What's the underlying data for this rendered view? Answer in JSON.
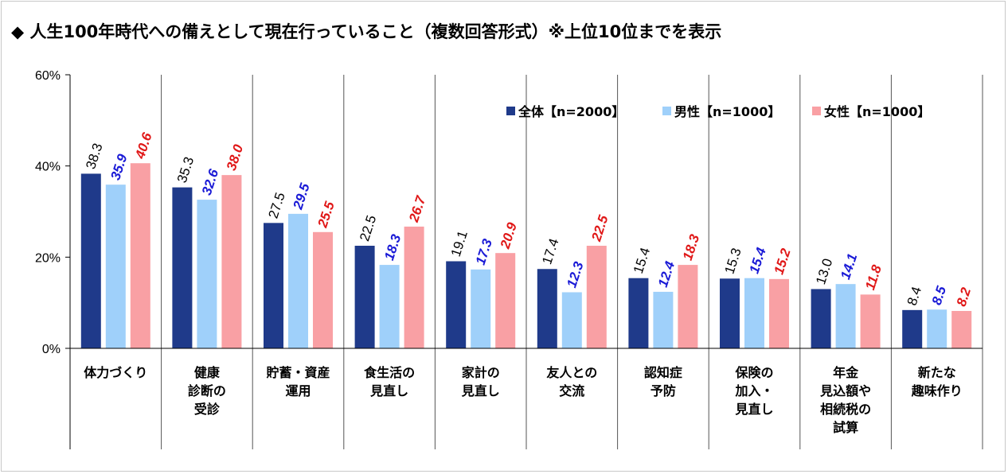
{
  "title": "◆ 人生100年時代への備えとして現在行っていること（複数回答形式）※上位10位までを表示",
  "colors": {
    "all": "#1f3a8a",
    "male": "#9fd0fa",
    "female": "#f9a0a4",
    "label_all": "#000000",
    "label_male": "#1a1ad6",
    "label_female": "#e01818"
  },
  "chart_data": {
    "type": "bar",
    "title": "",
    "xlabel": "",
    "ylabel": "",
    "ylim": [
      0,
      60
    ],
    "yticks": [
      "0%",
      "20%",
      "40%",
      "60%"
    ],
    "legend_position": "top-right",
    "categories": [
      [
        "体力づくり"
      ],
      [
        "健康",
        "診断の",
        "受診"
      ],
      [
        "貯蓄・資産",
        "運用"
      ],
      [
        "食生活の",
        "見直し"
      ],
      [
        "家計の",
        "見直し"
      ],
      [
        "友人との",
        "交流"
      ],
      [
        "認知症",
        "予防"
      ],
      [
        "保険の",
        "加入・",
        "見直し"
      ],
      [
        "年金",
        "見込額や",
        "相続税の",
        "試算"
      ],
      [
        "新たな",
        "趣味作り"
      ]
    ],
    "series": [
      {
        "name": "全体【n=2000】",
        "values": [
          38.3,
          35.3,
          27.5,
          22.5,
          19.1,
          17.4,
          15.4,
          15.3,
          13.0,
          8.4
        ],
        "labels": [
          "38.3",
          "35.3",
          "27.5",
          "22.5",
          "19.1",
          "17.4",
          "15.4",
          "15.3",
          "13.0",
          "8.4"
        ]
      },
      {
        "name": "男性【n=1000】",
        "values": [
          35.9,
          32.6,
          29.5,
          18.3,
          17.3,
          12.3,
          12.4,
          15.4,
          14.1,
          8.5
        ],
        "labels": [
          "35.9",
          "32.6",
          "29.5",
          "18.3",
          "17.3",
          "12.3",
          "12.4",
          "15.4",
          "14.1",
          "8.5"
        ]
      },
      {
        "name": "女性【n=1000】",
        "values": [
          40.6,
          38.0,
          25.5,
          26.7,
          20.9,
          22.5,
          18.3,
          15.2,
          11.8,
          8.2
        ],
        "labels": [
          "40.6",
          "38.0",
          "25.5",
          "26.7",
          "20.9",
          "22.5",
          "18.3",
          "15.2",
          "11.8",
          "8.2"
        ]
      }
    ]
  }
}
